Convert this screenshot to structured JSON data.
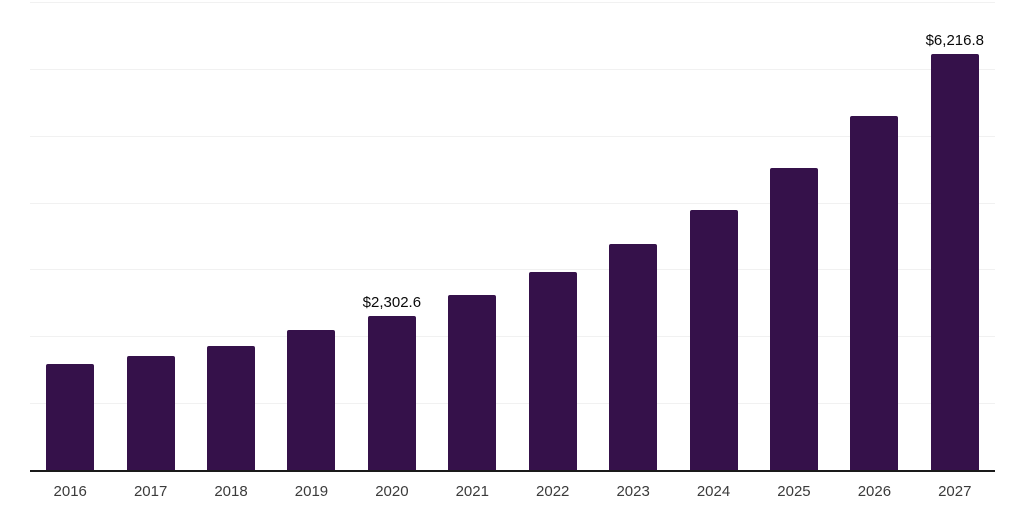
{
  "chart_data": {
    "type": "bar",
    "title": "",
    "xlabel": "",
    "ylabel": "",
    "categories": [
      "2016",
      "2017",
      "2018",
      "2019",
      "2020",
      "2021",
      "2022",
      "2023",
      "2024",
      "2025",
      "2026",
      "2027"
    ],
    "values": [
      1590,
      1705,
      1860,
      2100,
      2302.6,
      2615,
      2955,
      3375,
      3890,
      4515,
      5290,
      6216.8
    ],
    "bar_labels": [
      "",
      "",
      "",
      "",
      "$2,302.6",
      "",
      "",
      "",
      "",
      "",
      "",
      "$6,216.8"
    ],
    "ylim": [
      0,
      7000
    ],
    "gridline_step": 1000,
    "grid": "horizontal-only",
    "legend": "none",
    "y_axis_labels_visible": false,
    "colors": {
      "bar": "#35114A",
      "axis_line": "#1a1a1a",
      "gridline": "#f1f1f1",
      "value_label_text": "#0a0a0a",
      "tick_label_text": "#3b3b3b",
      "background": "#ffffff"
    }
  }
}
